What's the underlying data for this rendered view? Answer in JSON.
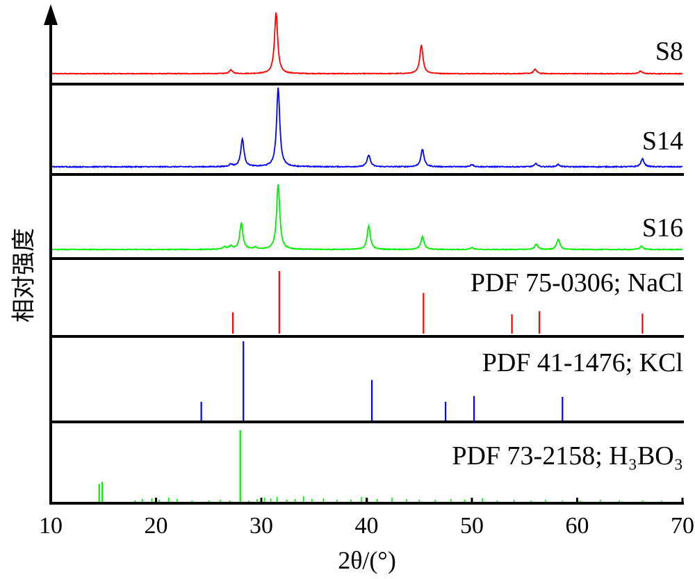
{
  "chart_data": {
    "type": "line",
    "xlabel": "2θ/(°)",
    "ylabel": "相对强度",
    "xlim": [
      10,
      70
    ],
    "xticks": [
      "10",
      "20",
      "30",
      "40",
      "50",
      "60",
      "70"
    ],
    "grid": false,
    "panels": [
      {
        "name": "S8",
        "kind": "pattern",
        "color": "#ff0000",
        "peaks": [
          [
            27.1,
            0.06
          ],
          [
            31.4,
            1.0
          ],
          [
            45.2,
            0.47
          ],
          [
            56.0,
            0.07
          ],
          [
            66.0,
            0.04
          ]
        ]
      },
      {
        "name": "S14",
        "kind": "pattern",
        "color": "#0000ff",
        "peaks": [
          [
            27.1,
            0.03
          ],
          [
            28.2,
            0.35
          ],
          [
            31.6,
            1.0
          ],
          [
            40.2,
            0.15
          ],
          [
            45.3,
            0.22
          ],
          [
            50.0,
            0.03
          ],
          [
            56.1,
            0.04
          ],
          [
            58.2,
            0.03
          ],
          [
            66.2,
            0.1
          ]
        ]
      },
      {
        "name": "S16",
        "kind": "pattern",
        "color": "#00ee00",
        "peaks": [
          [
            26.5,
            0.04
          ],
          [
            27.1,
            0.05
          ],
          [
            28.1,
            0.4
          ],
          [
            29.4,
            0.03
          ],
          [
            31.6,
            1.0
          ],
          [
            40.2,
            0.36
          ],
          [
            45.3,
            0.2
          ],
          [
            50.0,
            0.03
          ],
          [
            56.1,
            0.08
          ],
          [
            58.2,
            0.16
          ],
          [
            66.1,
            0.05
          ]
        ]
      },
      {
        "name": "PDF 75-0306; NaCl",
        "kind": "sticks",
        "color": "#ff0000",
        "sticks": [
          [
            27.3,
            0.34
          ],
          [
            31.7,
            1.0
          ],
          [
            45.4,
            0.65
          ],
          [
            53.8,
            0.31
          ],
          [
            56.4,
            0.36
          ],
          [
            66.2,
            0.32
          ]
        ]
      },
      {
        "name": "PDF 41-1476; KCl",
        "kind": "sticks",
        "color": "#0000ff",
        "sticks": [
          [
            24.3,
            0.25
          ],
          [
            28.3,
            1.0
          ],
          [
            40.5,
            0.52
          ],
          [
            47.5,
            0.25
          ],
          [
            50.2,
            0.32
          ],
          [
            58.6,
            0.31
          ]
        ]
      },
      {
        "name": "PDF 73-2158; H₃BO₃",
        "kind": "sticks",
        "color": "#00ee00",
        "sticks": [
          [
            14.6,
            0.25
          ],
          [
            14.9,
            0.28
          ],
          [
            18.0,
            0.02
          ],
          [
            18.7,
            0.04
          ],
          [
            19.6,
            0.05
          ],
          [
            20.3,
            0.03
          ],
          [
            21.2,
            0.06
          ],
          [
            22.0,
            0.04
          ],
          [
            23.4,
            0.02
          ],
          [
            25.0,
            0.02
          ],
          [
            26.1,
            0.03
          ],
          [
            27.0,
            0.02
          ],
          [
            28.0,
            1.0
          ],
          [
            28.8,
            0.02
          ],
          [
            29.6,
            0.04
          ],
          [
            30.3,
            0.06
          ],
          [
            30.9,
            0.05
          ],
          [
            31.5,
            0.07
          ],
          [
            32.4,
            0.03
          ],
          [
            33.2,
            0.04
          ],
          [
            34.0,
            0.08
          ],
          [
            34.8,
            0.04
          ],
          [
            35.9,
            0.05
          ],
          [
            37.2,
            0.03
          ],
          [
            38.5,
            0.03
          ],
          [
            39.5,
            0.07
          ],
          [
            40.1,
            0.05
          ],
          [
            41.0,
            0.04
          ],
          [
            42.4,
            0.06
          ],
          [
            43.8,
            0.04
          ],
          [
            45.0,
            0.03
          ],
          [
            46.5,
            0.03
          ],
          [
            48.0,
            0.04
          ],
          [
            49.3,
            0.03
          ],
          [
            51.0,
            0.05
          ],
          [
            52.4,
            0.02
          ],
          [
            54.0,
            0.03
          ],
          [
            55.6,
            0.02
          ],
          [
            57.0,
            0.03
          ],
          [
            58.6,
            0.02
          ],
          [
            60.3,
            0.02
          ],
          [
            62.2,
            0.03
          ],
          [
            64.0,
            0.02
          ],
          [
            66.2,
            0.02
          ],
          [
            68.0,
            0.02
          ]
        ]
      }
    ]
  }
}
